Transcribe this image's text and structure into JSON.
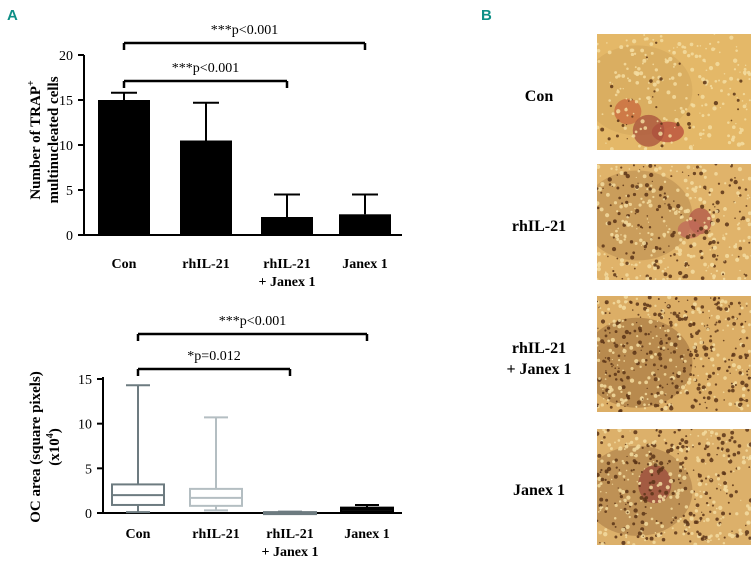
{
  "panels": {
    "a_letter": "A",
    "b_letter": "B"
  },
  "chart_data": [
    {
      "type": "bar",
      "categories": [
        "Con",
        "rhIL-21",
        "rhIL-21",
        "Janex 1"
      ],
      "categories_line2": [
        "",
        "",
        "+ Janex 1",
        ""
      ],
      "values": [
        15.0,
        10.5,
        2.0,
        2.3
      ],
      "errors": [
        0.8,
        4.2,
        2.5,
        2.2
      ],
      "ylabel_line1": "Number of TRAP",
      "ylabel_sup": "+",
      "ylabel_line2": "multinucleated cells",
      "ylim": [
        0,
        20
      ],
      "yticks": [
        "0",
        "5",
        "10",
        "15",
        "20"
      ],
      "bar_color": "#000000",
      "significance": [
        {
          "label": "***p<0.001",
          "from": 0,
          "to": 3
        },
        {
          "label": "***p<0.001",
          "from": 0,
          "to": 2
        }
      ]
    },
    {
      "type": "box",
      "categories": [
        "Con",
        "rhIL-21",
        "rhIL-21",
        "Janex 1"
      ],
      "categories_line2": [
        "",
        "",
        "+ Janex 1",
        ""
      ],
      "boxes": [
        {
          "min": 0.1,
          "q1": 0.9,
          "median": 2.0,
          "q3": 3.2,
          "max": 14.3,
          "color": "#6d7b80"
        },
        {
          "min": 0.3,
          "q1": 0.8,
          "median": 1.7,
          "q3": 2.7,
          "max": 10.7,
          "color": "#b4bec2"
        },
        {
          "min": 0.0,
          "q1": 0.02,
          "median": 0.05,
          "q3": 0.1,
          "max": 0.15,
          "color": "#6d7b80"
        },
        {
          "min": 0.05,
          "q1": 0.2,
          "median": 0.4,
          "q3": 0.6,
          "max": 0.9,
          "color": "#000000"
        }
      ],
      "ylabel_line1": "OC area (square pixels)",
      "ylabel_line2_pre": "(x10",
      "ylabel_sup": "4",
      "ylabel_line2_post": ")",
      "ylim": [
        0,
        15
      ],
      "yticks": [
        "0",
        "5",
        "10",
        "15"
      ],
      "significance": [
        {
          "label": "***p<0.001",
          "from": 0,
          "to": 3
        },
        {
          "label": "*p=0.012",
          "from": 0,
          "to": 2
        }
      ]
    }
  ],
  "micrographs": [
    {
      "label": "Con",
      "label2": "",
      "scene": "con"
    },
    {
      "label": "rhIL-21",
      "label2": "",
      "scene": "rhil21"
    },
    {
      "label": "rhIL-21",
      "label2": "+ Janex 1",
      "scene": "combo"
    },
    {
      "label": "Janex 1",
      "label2": "",
      "scene": "janex"
    }
  ]
}
